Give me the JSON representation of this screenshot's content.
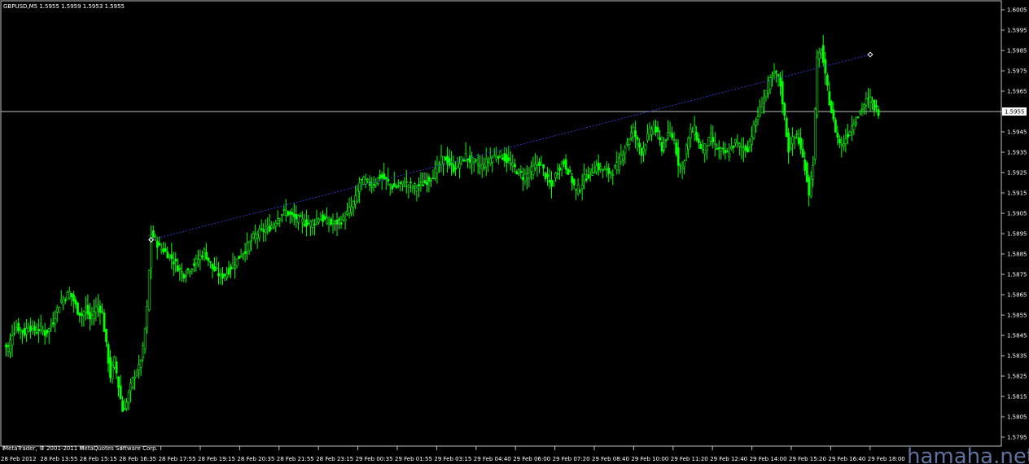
{
  "header": {
    "symbol_info": "GBPUSD,M5  1.5955 1.5959 1.5953 1.5955"
  },
  "footer": {
    "copyright": "MetaTrader, © 2001-2011 MetaQuotes Software Corp."
  },
  "watermark": "hamaha.net",
  "colors": {
    "background": "#000000",
    "candle": "#00ff00",
    "axis": "#c0c0c0",
    "trendline": "#3333cc",
    "bid_line": "#c0c0c0",
    "price_marker": "#ffffff"
  },
  "chart_data": {
    "type": "line",
    "title": "GBPUSD,M5",
    "y_ticks": [
      "1.6005",
      "1.5995",
      "1.5985",
      "1.5975",
      "1.5965",
      "1.5955",
      "1.5945",
      "1.5935",
      "1.5925",
      "1.5915",
      "1.5905",
      "1.5895",
      "1.5885",
      "1.5875",
      "1.5865",
      "1.5855",
      "1.5845",
      "1.5835",
      "1.5825",
      "1.5815",
      "1.5805",
      "1.5795"
    ],
    "ylim": [
      1.5791,
      1.6009
    ],
    "x_ticks": [
      "28 Feb 2012",
      "28 Feb 13:55",
      "28 Feb 15:15",
      "28 Feb 16:35",
      "28 Feb 17:55",
      "28 Feb 19:15",
      "28 Feb 20:35",
      "28 Feb 21:55",
      "28 Feb 23:15",
      "29 Feb 00:35",
      "29 Feb 01:55",
      "29 Feb 03:15",
      "29 Feb 04:40",
      "29 Feb 06:00",
      "29 Feb 07:20",
      "29 Feb 08:40",
      "29 Feb 10:00",
      "29 Feb 11:20",
      "29 Feb 12:40",
      "29 Feb 14:00",
      "29 Feb 15:20",
      "29 Feb 16:40",
      "29 Feb 18:00"
    ],
    "current_price": 1.5955,
    "current_price_label": "1.5955",
    "trendline": {
      "from": [
        36,
        1.5892
      ],
      "to": [
        212,
        1.5983
      ]
    },
    "series": [
      {
        "values": [
          1.584,
          1.5838,
          1.5846,
          1.5849,
          1.5848,
          1.5846,
          1.585,
          1.5848,
          1.5847,
          1.5849,
          1.5846,
          1.5848,
          1.5852,
          1.5858,
          1.5862,
          1.5864,
          1.5866,
          1.5862,
          1.5857,
          1.5855,
          1.5858,
          1.5853,
          1.5857,
          1.586,
          1.5856,
          1.584,
          1.5825,
          1.5833,
          1.582,
          1.5808,
          1.5812,
          1.582,
          1.5826,
          1.5829,
          1.5838,
          1.5858,
          1.5895,
          1.5892,
          1.5888,
          1.5887,
          1.5885,
          1.5883,
          1.588,
          1.5877,
          1.5875,
          1.5877,
          1.5879,
          1.5881,
          1.5884,
          1.5886,
          1.5882,
          1.5878,
          1.5876,
          1.5874,
          1.5875,
          1.5877,
          1.588,
          1.5882,
          1.5885,
          1.5887,
          1.589,
          1.5893,
          1.5895,
          1.5896,
          1.5897,
          1.5898,
          1.59,
          1.5903,
          1.5905,
          1.5906,
          1.5904,
          1.5903,
          1.5902,
          1.5901,
          1.59,
          1.59,
          1.5901,
          1.5903,
          1.5902,
          1.5901,
          1.59,
          1.59,
          1.5901,
          1.5902,
          1.5905,
          1.5908,
          1.5912,
          1.592,
          1.5921,
          1.592,
          1.5919,
          1.5921,
          1.5923,
          1.5922,
          1.592,
          1.5918,
          1.5918,
          1.5919,
          1.592,
          1.5919,
          1.5918,
          1.5918,
          1.5919,
          1.592,
          1.5922,
          1.5924,
          1.5927,
          1.5931,
          1.5932,
          1.5929,
          1.5927,
          1.5929,
          1.5931,
          1.5933,
          1.5931,
          1.593,
          1.5929,
          1.5928,
          1.593,
          1.5932,
          1.5933,
          1.5934,
          1.5933,
          1.5931,
          1.5929,
          1.5927,
          1.5925,
          1.5923,
          1.5924,
          1.5926,
          1.5928,
          1.593,
          1.5926,
          1.5921,
          1.5918,
          1.5924,
          1.5928,
          1.593,
          1.5926,
          1.5921,
          1.5916,
          1.5918,
          1.5922,
          1.5924,
          1.5926,
          1.5928,
          1.5927,
          1.5926,
          1.5925,
          1.5926,
          1.5928,
          1.5933,
          1.5938,
          1.5942,
          1.5946,
          1.594,
          1.5935,
          1.594,
          1.5945,
          1.5948,
          1.5943,
          1.5937,
          1.5942,
          1.5944,
          1.5941,
          1.593,
          1.5927,
          1.5938,
          1.5945,
          1.5946,
          1.5939,
          1.5936,
          1.5939,
          1.5942,
          1.5938,
          1.5936,
          1.5935,
          1.5934,
          1.5937,
          1.594,
          1.5938,
          1.5937,
          1.5937,
          1.5944,
          1.595,
          1.5956,
          1.5962,
          1.5968,
          1.5972,
          1.5974,
          1.5968,
          1.5952,
          1.5936,
          1.5941,
          1.5944,
          1.5936,
          1.5928,
          1.5915,
          1.593,
          1.598,
          1.5986,
          1.5972,
          1.596,
          1.595,
          1.5942,
          1.5938,
          1.5942,
          1.5946,
          1.595,
          1.5953,
          1.5957,
          1.596,
          1.5961,
          1.5957,
          1.5955
        ]
      }
    ]
  }
}
